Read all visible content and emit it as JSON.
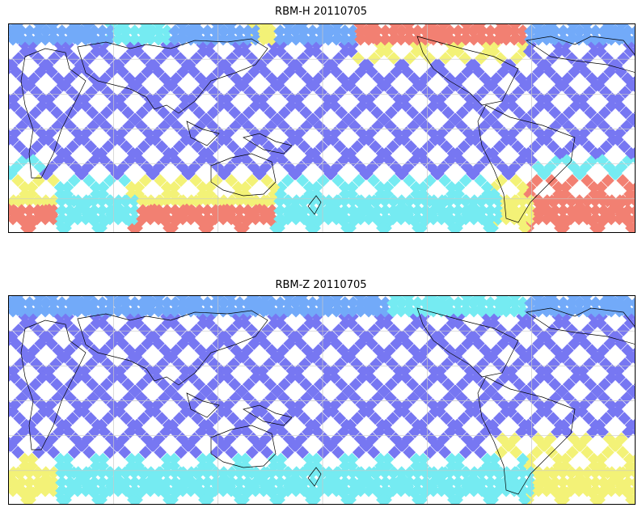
{
  "panels": [
    {
      "title": "RBM-H 20110705",
      "variant": "H"
    },
    {
      "title": "RBM-Z 20110705",
      "variant": "Z"
    }
  ],
  "colors": {
    "low": "#6060f0",
    "mid_low": "#5a9cf8",
    "mid": "#5de8f0",
    "mid_high": "#f2f060",
    "high": "#f06a5a",
    "grid": "#c8c8c8",
    "coast": "#000000"
  }
}
